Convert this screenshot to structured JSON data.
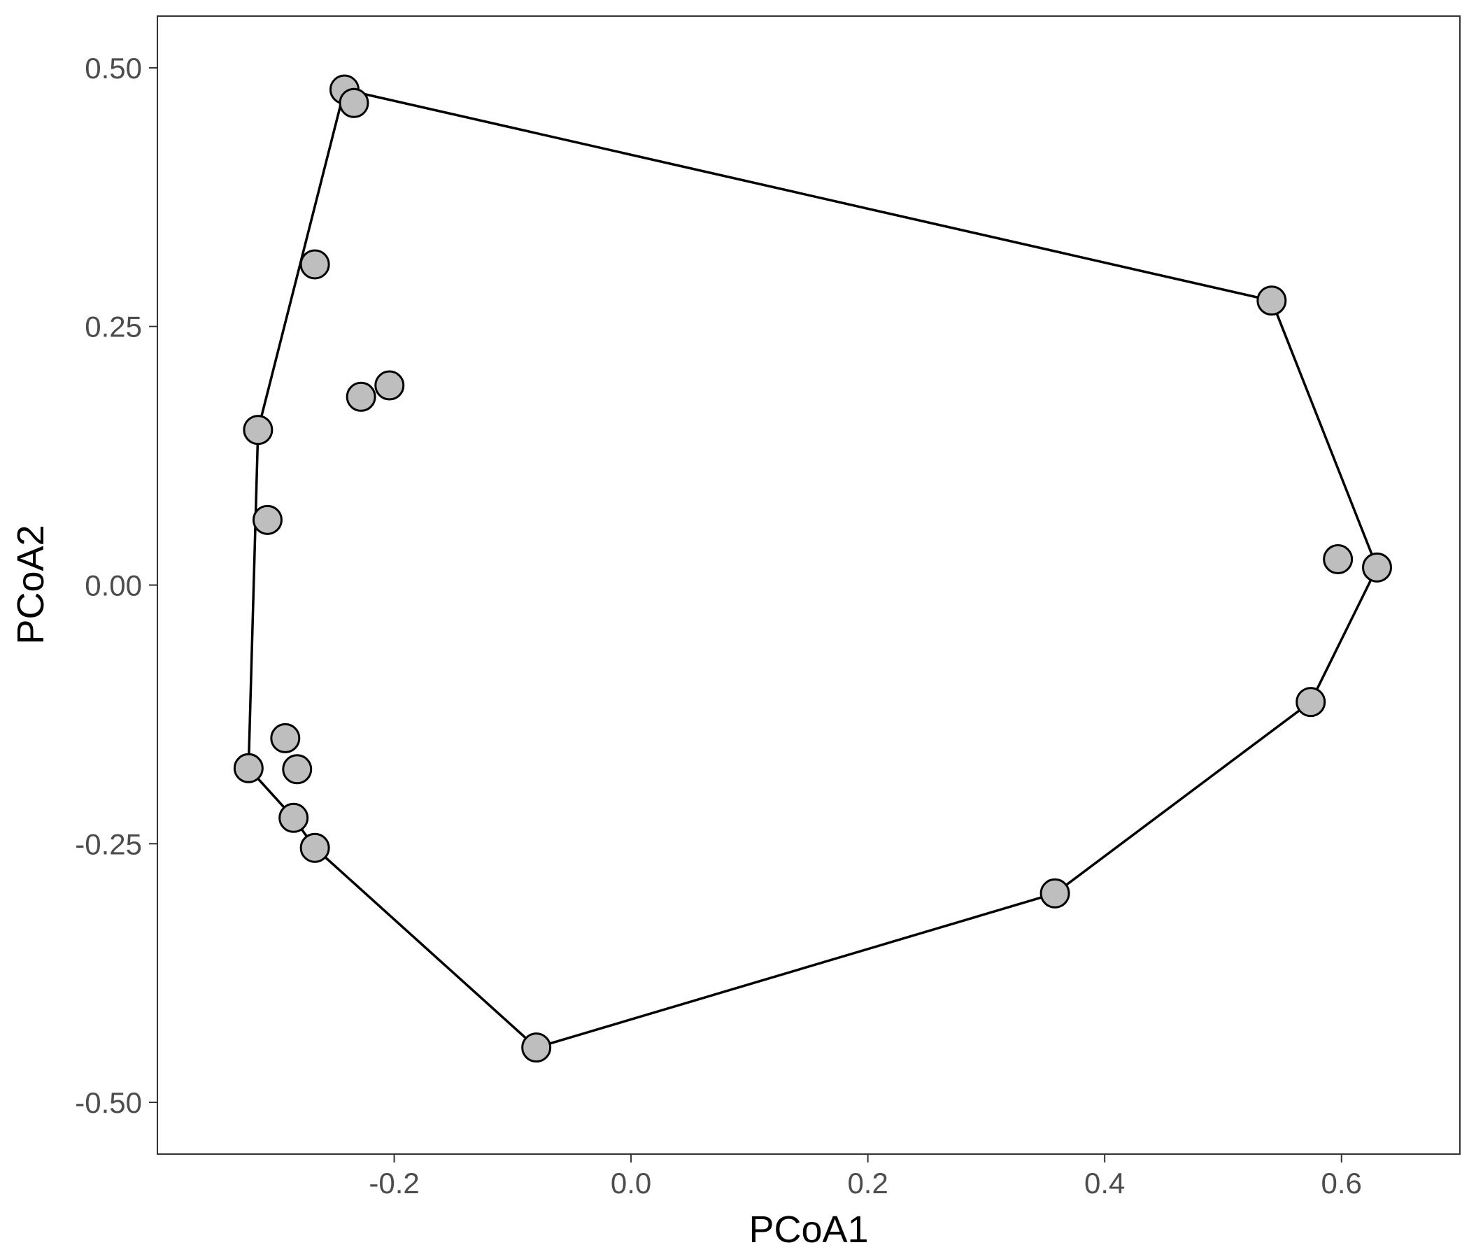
{
  "chart_data": {
    "type": "scatter",
    "title": "",
    "xlabel": "PCoA1",
    "ylabel": "PCoA2",
    "xlim": [
      -0.4,
      0.7
    ],
    "ylim": [
      -0.55,
      0.55
    ],
    "x_ticks": [
      -0.2,
      0.0,
      0.2,
      0.4,
      0.6
    ],
    "x_tick_labels": [
      "-0.2",
      "0.0",
      "0.2",
      "0.4",
      "0.6"
    ],
    "y_ticks": [
      0.5,
      0.25,
      0.0,
      -0.25,
      -0.5
    ],
    "y_tick_labels": [
      "0.50",
      "0.25",
      "0.00",
      "-0.25",
      "-0.50"
    ],
    "grid": false,
    "point_fill": "#bebebe",
    "point_stroke": "#000000",
    "hull_color": "#000000",
    "points": [
      {
        "x": -0.242,
        "y": 0.479
      },
      {
        "x": -0.234,
        "y": 0.466
      },
      {
        "x": -0.267,
        "y": 0.31
      },
      {
        "x": -0.228,
        "y": 0.182
      },
      {
        "x": -0.204,
        "y": 0.193
      },
      {
        "x": -0.315,
        "y": 0.15
      },
      {
        "x": -0.307,
        "y": 0.063
      },
      {
        "x": -0.292,
        "y": -0.148
      },
      {
        "x": -0.282,
        "y": -0.178
      },
      {
        "x": -0.323,
        "y": -0.177
      },
      {
        "x": -0.285,
        "y": -0.225
      },
      {
        "x": -0.267,
        "y": -0.254
      },
      {
        "x": -0.08,
        "y": -0.447
      },
      {
        "x": 0.358,
        "y": -0.298
      },
      {
        "x": 0.574,
        "y": -0.113
      },
      {
        "x": 0.597,
        "y": 0.025
      },
      {
        "x": 0.63,
        "y": 0.017
      },
      {
        "x": 0.541,
        "y": 0.275
      }
    ],
    "hull": [
      {
        "x": -0.242,
        "y": 0.479
      },
      {
        "x": 0.541,
        "y": 0.275
      },
      {
        "x": 0.63,
        "y": 0.017
      },
      {
        "x": 0.574,
        "y": -0.113
      },
      {
        "x": 0.358,
        "y": -0.298
      },
      {
        "x": -0.08,
        "y": -0.447
      },
      {
        "x": -0.267,
        "y": -0.254
      },
      {
        "x": -0.285,
        "y": -0.225
      },
      {
        "x": -0.323,
        "y": -0.177
      },
      {
        "x": -0.315,
        "y": 0.15
      }
    ]
  }
}
